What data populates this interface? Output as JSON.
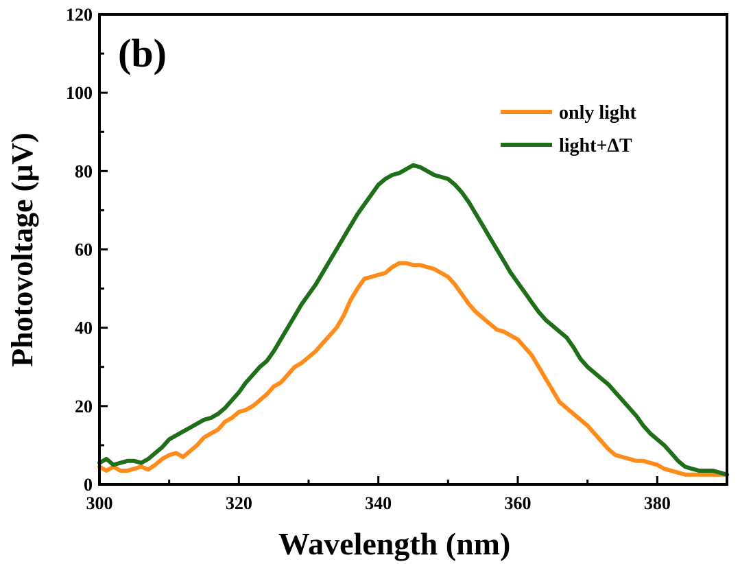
{
  "chart_data": {
    "type": "line",
    "panel_label": "(b)",
    "xlabel": "Wavelength (nm)",
    "ylabel": "Photovoltage (μV)",
    "xlim": [
      300,
      390
    ],
    "ylim": [
      0,
      120
    ],
    "x_ticks": [
      300,
      320,
      340,
      360,
      380
    ],
    "y_ticks": [
      0,
      20,
      40,
      60,
      80,
      100,
      120
    ],
    "grid": false,
    "legend_position": "top-right",
    "series": [
      {
        "name": "only light",
        "color": "#ff8c1a",
        "x": [
          300,
          301,
          302,
          303,
          304,
          305,
          306,
          307,
          308,
          309,
          310,
          311,
          312,
          313,
          314,
          315,
          316,
          317,
          318,
          319,
          320,
          321,
          322,
          323,
          324,
          325,
          326,
          327,
          328,
          329,
          330,
          331,
          332,
          333,
          334,
          335,
          336,
          337,
          338,
          339,
          340,
          341,
          342,
          343,
          344,
          345,
          346,
          347,
          348,
          349,
          350,
          351,
          352,
          353,
          354,
          355,
          356,
          357,
          358,
          359,
          360,
          361,
          362,
          363,
          364,
          365,
          366,
          367,
          368,
          369,
          370,
          371,
          372,
          373,
          374,
          375,
          376,
          377,
          378,
          379,
          380,
          381,
          382,
          383,
          384,
          385,
          386,
          387,
          388,
          389,
          390
        ],
        "y": [
          4.5,
          3.5,
          4.5,
          3.5,
          3.5,
          4.0,
          4.5,
          3.8,
          5.0,
          6.5,
          7.5,
          8.0,
          7.0,
          8.5,
          10,
          12,
          13,
          14,
          16,
          17,
          18.5,
          19,
          20,
          21.5,
          23,
          25,
          26,
          28,
          30,
          31,
          32.5,
          34,
          36,
          38,
          40,
          43,
          47,
          50,
          52.5,
          53,
          53.5,
          54,
          55.5,
          56.5,
          56.5,
          56.0,
          56.0,
          55.5,
          55,
          54,
          53,
          51,
          48.5,
          46,
          44,
          42.5,
          41,
          39.5,
          39,
          38,
          37,
          35,
          33,
          30,
          27,
          24,
          21,
          19.5,
          18,
          16.5,
          15,
          13,
          11,
          9,
          7.5,
          7,
          6.5,
          6,
          6,
          5.5,
          5,
          4,
          3.5,
          3,
          2.5,
          2.5,
          2.5,
          2.5,
          2.5,
          2.5,
          2.5
        ]
      },
      {
        "name": "light+ΔT",
        "color": "#1f6e1a",
        "x": [
          300,
          301,
          302,
          303,
          304,
          305,
          306,
          307,
          308,
          309,
          310,
          311,
          312,
          313,
          314,
          315,
          316,
          317,
          318,
          319,
          320,
          321,
          322,
          323,
          324,
          325,
          326,
          327,
          328,
          329,
          330,
          331,
          332,
          333,
          334,
          335,
          336,
          337,
          338,
          339,
          340,
          341,
          342,
          343,
          344,
          345,
          346,
          347,
          348,
          349,
          350,
          351,
          352,
          353,
          354,
          355,
          356,
          357,
          358,
          359,
          360,
          361,
          362,
          363,
          364,
          365,
          366,
          367,
          368,
          369,
          370,
          371,
          372,
          373,
          374,
          375,
          376,
          377,
          378,
          379,
          380,
          381,
          382,
          383,
          384,
          385,
          386,
          387,
          388,
          389,
          390
        ],
        "y": [
          5.5,
          6.5,
          5.0,
          5.5,
          6.0,
          6.0,
          5.5,
          6.5,
          8.0,
          9.5,
          11.5,
          12.5,
          13.5,
          14.5,
          15.5,
          16.5,
          17,
          18,
          19.5,
          21.5,
          23.5,
          26,
          28,
          30,
          31.5,
          34,
          37,
          40,
          43,
          46,
          48.5,
          51,
          54,
          57,
          60,
          63,
          66,
          69,
          71.5,
          74,
          76.5,
          78,
          79,
          79.5,
          80.5,
          81.5,
          81,
          80,
          79,
          78.5,
          78,
          76.5,
          74.5,
          72,
          69,
          66,
          63,
          60,
          57,
          54,
          51.5,
          49,
          46.5,
          44,
          42,
          40.5,
          39,
          37.5,
          35,
          32,
          30,
          28.5,
          27,
          25.5,
          23.5,
          21.5,
          19.5,
          17.5,
          15,
          13,
          11.5,
          10,
          8,
          6,
          4.5,
          4,
          3.5,
          3.5,
          3.5,
          3,
          2.5
        ]
      }
    ]
  }
}
